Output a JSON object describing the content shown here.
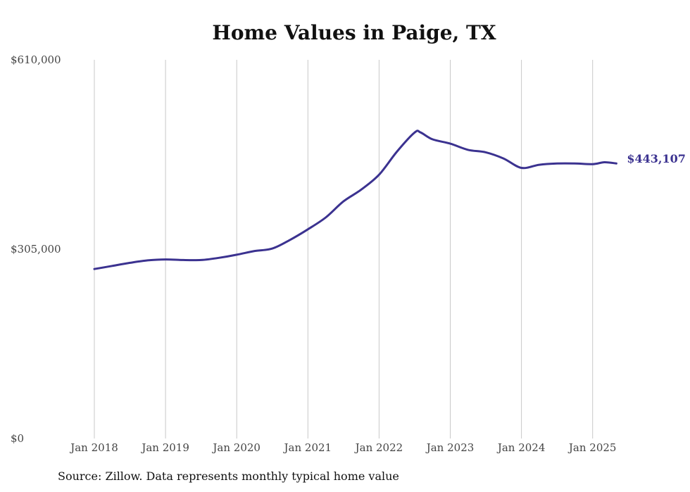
{
  "chart_data": {
    "type": "line",
    "title": "Home Values in Paige, TX",
    "source_note": "Source: Zillow. Data represents monthly typical home value",
    "ylim": [
      0,
      610000
    ],
    "yticks": [
      {
        "value": 0,
        "label": "$0"
      },
      {
        "value": 305000,
        "label": "$305,000"
      },
      {
        "value": 610000,
        "label": "$610,000"
      }
    ],
    "xticks": [
      "Jan 2018",
      "Jan 2019",
      "Jan 2020",
      "Jan 2021",
      "Jan 2022",
      "Jan 2023",
      "Jan 2024",
      "Jan 2025"
    ],
    "xlim": [
      "2018-01",
      "2025-05"
    ],
    "grid": {
      "vertical": true,
      "horizontal": false
    },
    "series": [
      {
        "color": "#3b3290",
        "end_label": "$443,107",
        "points": [
          [
            "2018-01",
            273000
          ],
          [
            "2018-04",
            278000
          ],
          [
            "2018-07",
            283000
          ],
          [
            "2018-10",
            287000
          ],
          [
            "2019-01",
            288500
          ],
          [
            "2019-04",
            287500
          ],
          [
            "2019-07",
            287500
          ],
          [
            "2019-10",
            291000
          ],
          [
            "2020-01",
            296000
          ],
          [
            "2020-04",
            302000
          ],
          [
            "2020-07",
            306000
          ],
          [
            "2020-10",
            320000
          ],
          [
            "2021-01",
            337000
          ],
          [
            "2021-04",
            356000
          ],
          [
            "2021-07",
            382000
          ],
          [
            "2021-10",
            401000
          ],
          [
            "2022-01",
            425000
          ],
          [
            "2022-04",
            462000
          ],
          [
            "2022-07",
            493000
          ],
          [
            "2022-08",
            493000
          ],
          [
            "2022-10",
            482000
          ],
          [
            "2023-01",
            475000
          ],
          [
            "2023-04",
            465000
          ],
          [
            "2023-07",
            461000
          ],
          [
            "2023-10",
            451000
          ],
          [
            "2024-01",
            436000
          ],
          [
            "2024-04",
            441000
          ],
          [
            "2024-07",
            443000
          ],
          [
            "2024-10",
            443000
          ],
          [
            "2025-01",
            442000
          ],
          [
            "2025-03",
            445000
          ],
          [
            "2025-05",
            443107
          ]
        ]
      }
    ]
  }
}
